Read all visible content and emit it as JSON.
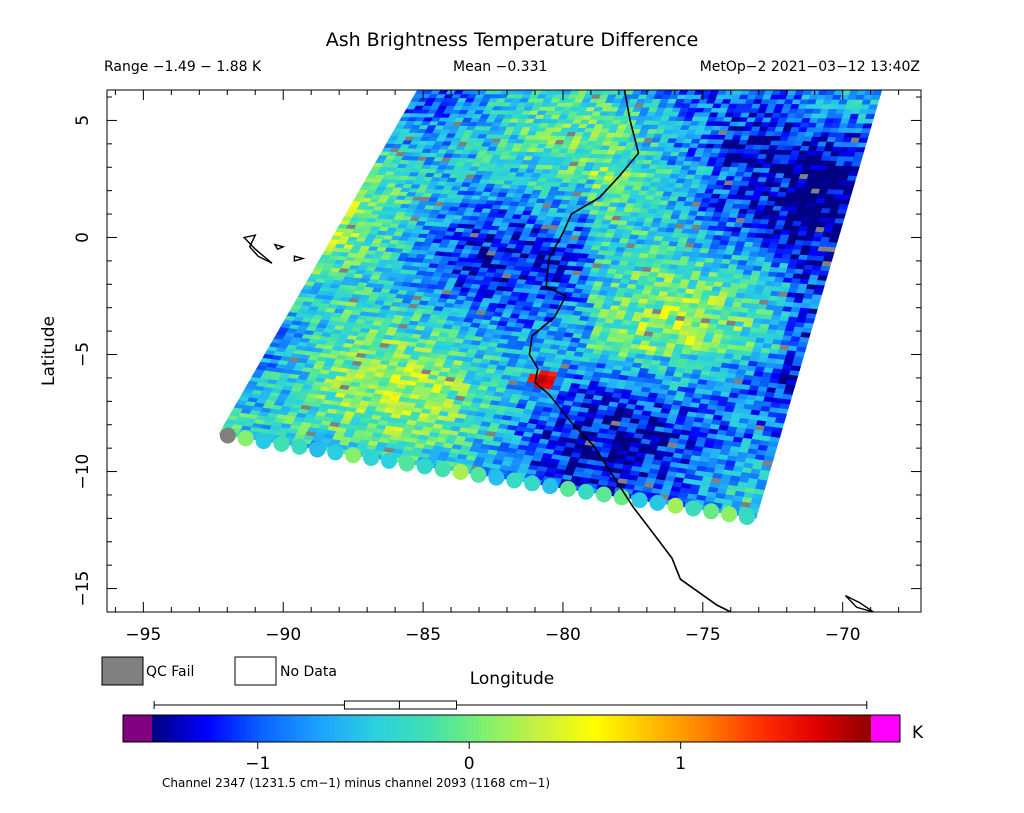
{
  "chart_data": {
    "type": "heatmap",
    "title": "Ash Brightness Temperature Difference",
    "range_text": "Range −1.49 − 1.88 K",
    "mean_text": "Mean −0.331",
    "satellite_text": "MetOp−2 2021−03−12 13:40Z",
    "xlabel": "Longitude",
    "ylabel": "Latitude",
    "xlim": [
      -96.3,
      -67.2
    ],
    "ylim": [
      -16.0,
      6.3
    ],
    "x_ticks": [
      -95,
      -90,
      -85,
      -80,
      -75,
      -70
    ],
    "x_tick_labels": [
      "−95",
      "−90",
      "−85",
      "−80",
      "−75",
      "−70"
    ],
    "y_ticks": [
      5,
      0,
      -5,
      -10,
      -15
    ],
    "y_tick_labels": [
      "5",
      "0",
      "−5",
      "−10",
      "−15"
    ],
    "swath_corners": [
      [
        -92.3,
        -8.4
      ],
      [
        -73.1,
        -12.0
      ],
      [
        -68.6,
        6.3
      ],
      [
        -85.2,
        6.3
      ]
    ],
    "hotspot": {
      "lon": -80.7,
      "lat": -6.1,
      "value": 1.88
    },
    "mean_value": -0.331,
    "value_range": [
      -1.49,
      1.88
    ],
    "coastline": [
      [
        -77.8,
        6.3
      ],
      [
        -77.6,
        5.0
      ],
      [
        -77.3,
        3.6
      ],
      [
        -78.0,
        2.6
      ],
      [
        -78.7,
        1.7
      ],
      [
        -79.7,
        1.0
      ],
      [
        -80.0,
        0.2
      ],
      [
        -80.5,
        -0.9
      ],
      [
        -80.6,
        -2.1
      ],
      [
        -79.9,
        -2.5
      ],
      [
        -80.3,
        -3.4
      ],
      [
        -81.1,
        -4.2
      ],
      [
        -81.2,
        -5.0
      ],
      [
        -80.9,
        -5.6
      ],
      [
        -81.0,
        -6.2
      ],
      [
        -80.5,
        -6.7
      ],
      [
        -79.7,
        -7.9
      ],
      [
        -78.9,
        -8.9
      ],
      [
        -78.2,
        -10.2
      ],
      [
        -77.5,
        -11.5
      ],
      [
        -76.8,
        -12.6
      ],
      [
        -76.1,
        -13.7
      ],
      [
        -75.8,
        -14.6
      ],
      [
        -74.5,
        -15.7
      ],
      [
        -74.0,
        -16.0
      ]
    ],
    "islands": [
      [
        [
          -91.4,
          0.0
        ],
        [
          -91.0,
          -0.5
        ],
        [
          -90.4,
          -1.1
        ],
        [
          -90.9,
          -0.8
        ],
        [
          -91.2,
          -0.4
        ],
        [
          -91.0,
          0.1
        ],
        [
          -91.4,
          0.0
        ]
      ],
      [
        [
          -90.3,
          -0.3
        ],
        [
          -90.0,
          -0.4
        ],
        [
          -90.2,
          -0.5
        ],
        [
          -90.3,
          -0.3
        ]
      ],
      [
        [
          -89.6,
          -0.8
        ],
        [
          -89.3,
          -0.9
        ],
        [
          -89.6,
          -1.0
        ],
        [
          -89.6,
          -0.8
        ]
      ],
      [
        [
          -69.9,
          -15.3
        ],
        [
          -69.4,
          -15.6
        ],
        [
          -68.9,
          -16.0
        ],
        [
          -69.5,
          -15.8
        ],
        [
          -69.9,
          -15.3
        ]
      ]
    ],
    "colorbar": {
      "ticks": [
        -1,
        0,
        1
      ],
      "tick_labels": [
        "−1",
        "0",
        "1"
      ],
      "min": -1.5,
      "max": 1.9,
      "unit": "K",
      "caption": "Channel 2347 (1231.5 cm−1) minus channel 2093 (1168 cm−1)",
      "colors": [
        "#000080",
        "#0000ff",
        "#0a64ff",
        "#1ea0ff",
        "#2ad0e0",
        "#40e0b0",
        "#80f070",
        "#c8f040",
        "#ffff00",
        "#ffc000",
        "#ff8000",
        "#ff3000",
        "#e00000",
        "#900000"
      ],
      "under_color": "#800080",
      "over_color": "#ff00ff",
      "box_whisker": {
        "min": -1.49,
        "q1": -0.59,
        "median": -0.33,
        "q3": -0.06,
        "max": 1.88
      }
    },
    "legend": {
      "qc_fail_label": "QC Fail",
      "no_data_label": "No Data",
      "qc_fail_color": "#808080",
      "no_data_color": "#ffffff"
    }
  }
}
